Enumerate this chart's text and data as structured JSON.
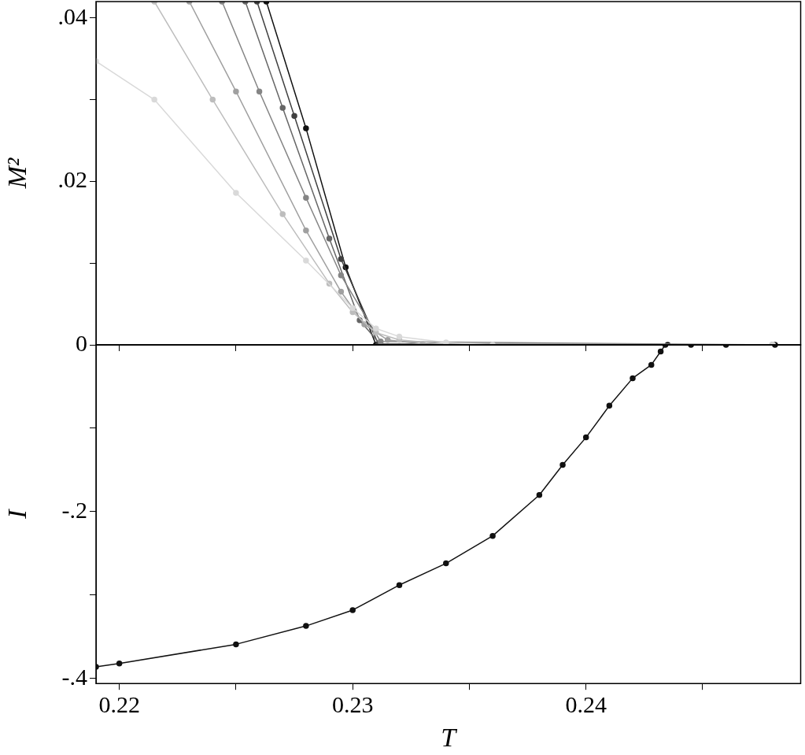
{
  "chart_data": [
    {
      "type": "line",
      "ylabel": "M²",
      "xlim": [
        0.219,
        0.2492
      ],
      "ylim": [
        0,
        0.042
      ],
      "xticks": [
        0.22,
        {
          "value": 0.225,
          "label": null
        },
        0.23,
        {
          "value": 0.235,
          "label": null
        },
        0.24,
        {
          "value": 0.245,
          "label": null
        }
      ],
      "yticks": [
        {
          "value": 0,
          "label": "0"
        },
        {
          "value": 0.01,
          "label": null
        },
        {
          "value": 0.02,
          "label": ".02"
        },
        {
          "value": 0.03,
          "label": null
        },
        {
          "value": 0.04,
          "label": ".04"
        }
      ],
      "tick_labels": "y",
      "marker": "circle",
      "line_style": "solid",
      "series": [
        {
          "color": "#d9d9d9",
          "x": [
            0.219,
            0.2215,
            0.225,
            0.228,
            0.23,
            0.231,
            0.232,
            0.234,
            0.236,
            0.248
          ],
          "values": [
            0.0347,
            0.03,
            0.0186,
            0.0103,
            0.0045,
            0.002,
            0.001,
            0.0003,
            0,
            0
          ]
        },
        {
          "color": "#bdbdbd",
          "x": [
            0.2215,
            0.224,
            0.227,
            0.229,
            0.23,
            0.231,
            0.232,
            0.234,
            0.248
          ],
          "values": [
            0.042,
            0.03,
            0.016,
            0.0075,
            0.004,
            0.0015,
            0.0006,
            0.0001,
            0
          ]
        },
        {
          "color": "#a0a0a0",
          "x": [
            0.223,
            0.225,
            0.228,
            0.2295,
            0.2305,
            0.2315,
            0.233,
            0.248
          ],
          "values": [
            0.042,
            0.031,
            0.014,
            0.0065,
            0.0025,
            0.0006,
            0.0001,
            0
          ]
        },
        {
          "color": "#858585",
          "x": [
            0.2244,
            0.226,
            0.228,
            0.2295,
            0.2312,
            0.248
          ],
          "values": [
            0.042,
            0.031,
            0.018,
            0.0085,
            0.0004,
            0
          ]
        },
        {
          "color": "#666666",
          "x": [
            0.2254,
            0.227,
            0.229,
            0.2303,
            0.2312,
            0.248
          ],
          "values": [
            0.042,
            0.029,
            0.013,
            0.003,
            0,
            0
          ]
        },
        {
          "color": "#404040",
          "x": [
            0.2259,
            0.2275,
            0.2295,
            0.2311,
            0.248
          ],
          "values": [
            0.042,
            0.028,
            0.0105,
            0.0001,
            0
          ]
        },
        {
          "color": "#111111",
          "x": [
            0.2263,
            0.228,
            0.2297,
            0.231,
            0.2435,
            0.2481
          ],
          "values": [
            0.042,
            0.0265,
            0.0095,
            0,
            0,
            0
          ]
        }
      ]
    },
    {
      "type": "line",
      "xlabel": "T",
      "ylabel": "I",
      "xlim": [
        0.219,
        0.2492
      ],
      "ylim": [
        -0.406,
        0
      ],
      "xticks": [
        0.22,
        {
          "value": 0.225,
          "label": null
        },
        0.23,
        {
          "value": 0.235,
          "label": null
        },
        0.24,
        {
          "value": 0.245,
          "label": null
        }
      ],
      "yticks": [
        {
          "value": -0.4,
          "label": "-.4"
        },
        {
          "value": -0.3,
          "label": null
        },
        {
          "value": -0.2,
          "label": "-.2"
        },
        {
          "value": -0.1,
          "label": null
        }
      ],
      "marker": "circle",
      "line_style": "solid",
      "series": [
        {
          "color": "#111111",
          "x": [
            0.219,
            0.22,
            0.225,
            0.228,
            0.23,
            0.232,
            0.234,
            0.236,
            0.238,
            0.239,
            0.24,
            0.241,
            0.242,
            0.2428,
            0.2432,
            0.2434,
            0.2445,
            0.246,
            0.2481
          ],
          "values": [
            -0.386,
            -0.382,
            -0.359,
            -0.337,
            -0.318,
            -0.288,
            -0.262,
            -0.229,
            -0.18,
            -0.144,
            -0.111,
            -0.073,
            -0.04,
            -0.024,
            -0.008,
            0,
            0,
            0,
            0
          ]
        }
      ]
    }
  ]
}
